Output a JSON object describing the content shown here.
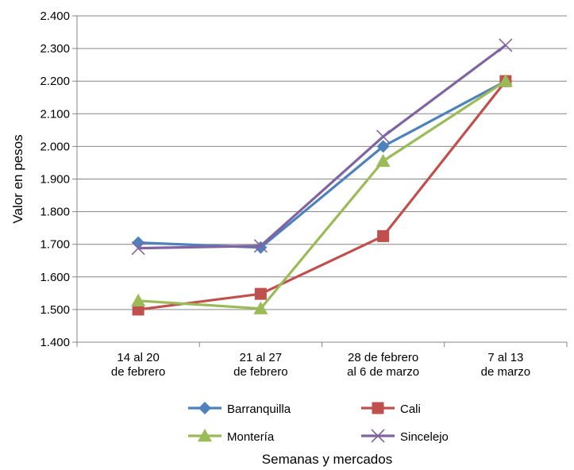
{
  "chart_data": {
    "type": "line",
    "title": "",
    "xlabel": "Semanas y mercados",
    "ylabel": "Valor en pesos",
    "ylim": [
      1400,
      2400
    ],
    "y_ticks": [
      1400,
      1500,
      1600,
      1700,
      1800,
      1900,
      2000,
      2100,
      2200,
      2300,
      2400
    ],
    "y_tick_labels": [
      "1.400",
      "1.500",
      "1.600",
      "1.700",
      "1.800",
      "1.900",
      "2.000",
      "2.100",
      "2.200",
      "2.300",
      "2.400"
    ],
    "categories": [
      [
        "14 al 20",
        "de febrero"
      ],
      [
        "21 al 27",
        "de febrero"
      ],
      [
        "28 de febrero",
        "al 6 de marzo"
      ],
      [
        "7 al 13",
        "de marzo"
      ]
    ],
    "grid": true,
    "legend_position": "bottom",
    "series": [
      {
        "name": "Barranquilla",
        "color": "#4f81bd",
        "marker": "diamond",
        "values": [
          1705,
          1690,
          2000,
          2200
        ]
      },
      {
        "name": "Cali",
        "color": "#c0504d",
        "marker": "square",
        "values": [
          1500,
          1548,
          1725,
          2200
        ]
      },
      {
        "name": "Montería",
        "color": "#9bbb59",
        "marker": "triangle",
        "values": [
          1527,
          1503,
          1955,
          2200
        ]
      },
      {
        "name": "Sincelejo",
        "color": "#8064a2",
        "marker": "x",
        "values": [
          1688,
          1695,
          2030,
          2310
        ]
      }
    ]
  }
}
